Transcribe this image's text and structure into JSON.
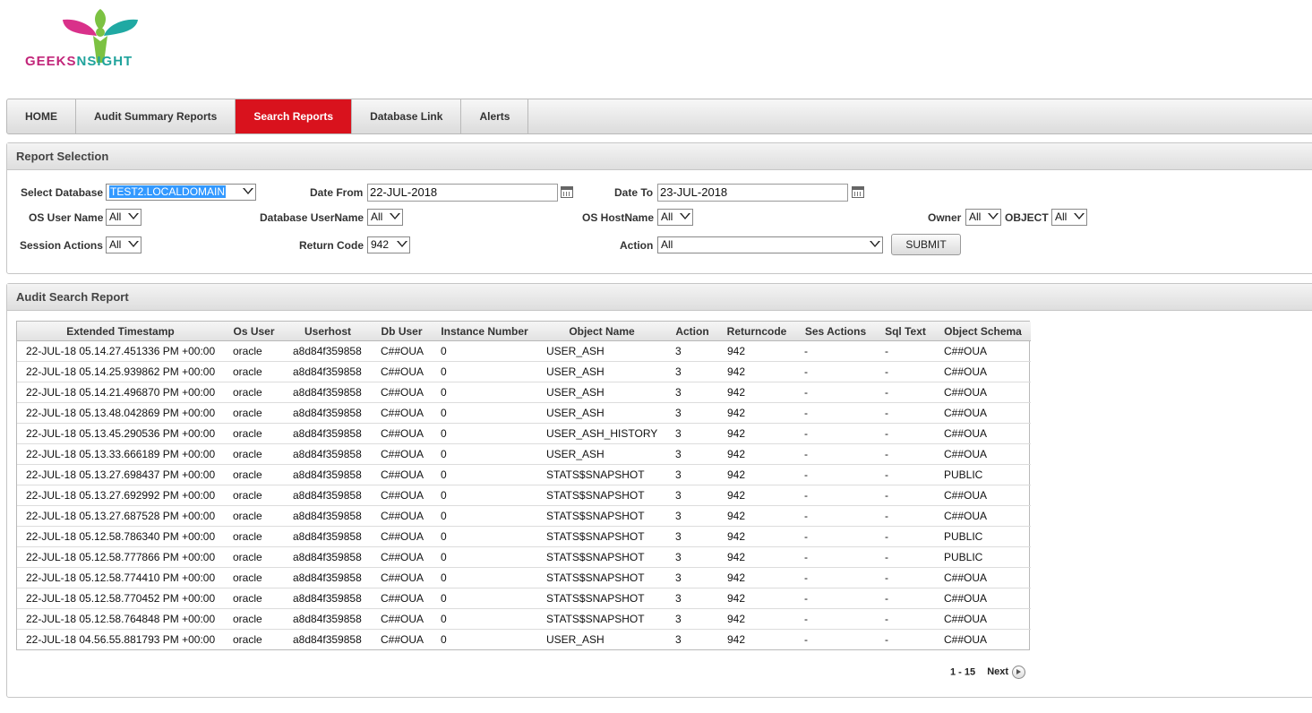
{
  "logo": {
    "text_a": "GEEKS",
    "text_b": "NSIGHT"
  },
  "nav": {
    "tabs": [
      {
        "label": "HOME",
        "active": false
      },
      {
        "label": "Audit Summary Reports",
        "active": false
      },
      {
        "label": "Search Reports",
        "active": true
      },
      {
        "label": "Database Link",
        "active": false
      },
      {
        "label": "Alerts",
        "active": false
      }
    ]
  },
  "report_selection": {
    "title": "Report Selection",
    "select_database": {
      "label": "Select Database",
      "value": "TEST2.LOCALDOMAIN"
    },
    "date_from": {
      "label": "Date From",
      "value": "22-JUL-2018"
    },
    "date_to": {
      "label": "Date To",
      "value": "23-JUL-2018"
    },
    "os_user": {
      "label": "OS User Name",
      "value": "All"
    },
    "db_username": {
      "label": "Database UserName",
      "value": "All"
    },
    "os_hostname": {
      "label": "OS HostName",
      "value": "All"
    },
    "owner": {
      "label": "Owner",
      "value": "All"
    },
    "object": {
      "label": "OBJECT",
      "value": "All"
    },
    "session_actions": {
      "label": "Session Actions",
      "value": "All"
    },
    "return_code": {
      "label": "Return Code",
      "value": "942"
    },
    "action": {
      "label": "Action",
      "value": "All"
    },
    "submit_label": "SUBMIT"
  },
  "audit_report": {
    "title": "Audit Search Report",
    "columns": [
      "Extended Timestamp",
      "Os User",
      "Userhost",
      "Db User",
      "Instance Number",
      "Object Name",
      "Action",
      "Returncode",
      "Ses Actions",
      "Sql Text",
      "Object Schema"
    ],
    "rows": [
      [
        "22-JUL-18 05.14.27.451336 PM +00:00",
        "oracle",
        "a8d84f359858",
        "C##OUA",
        "0",
        "USER_ASH",
        "3",
        "942",
        "-",
        "-",
        "C##OUA"
      ],
      [
        "22-JUL-18 05.14.25.939862 PM +00:00",
        "oracle",
        "a8d84f359858",
        "C##OUA",
        "0",
        "USER_ASH",
        "3",
        "942",
        "-",
        "-",
        "C##OUA"
      ],
      [
        "22-JUL-18 05.14.21.496870 PM +00:00",
        "oracle",
        "a8d84f359858",
        "C##OUA",
        "0",
        "USER_ASH",
        "3",
        "942",
        "-",
        "-",
        "C##OUA"
      ],
      [
        "22-JUL-18 05.13.48.042869 PM +00:00",
        "oracle",
        "a8d84f359858",
        "C##OUA",
        "0",
        "USER_ASH",
        "3",
        "942",
        "-",
        "-",
        "C##OUA"
      ],
      [
        "22-JUL-18 05.13.45.290536 PM +00:00",
        "oracle",
        "a8d84f359858",
        "C##OUA",
        "0",
        "USER_ASH_HISTORY",
        "3",
        "942",
        "-",
        "-",
        "C##OUA"
      ],
      [
        "22-JUL-18 05.13.33.666189 PM +00:00",
        "oracle",
        "a8d84f359858",
        "C##OUA",
        "0",
        "USER_ASH",
        "3",
        "942",
        "-",
        "-",
        "C##OUA"
      ],
      [
        "22-JUL-18 05.13.27.698437 PM +00:00",
        "oracle",
        "a8d84f359858",
        "C##OUA",
        "0",
        "STATS$SNAPSHOT",
        "3",
        "942",
        "-",
        "-",
        "PUBLIC"
      ],
      [
        "22-JUL-18 05.13.27.692992 PM +00:00",
        "oracle",
        "a8d84f359858",
        "C##OUA",
        "0",
        "STATS$SNAPSHOT",
        "3",
        "942",
        "-",
        "-",
        "C##OUA"
      ],
      [
        "22-JUL-18 05.13.27.687528 PM +00:00",
        "oracle",
        "a8d84f359858",
        "C##OUA",
        "0",
        "STATS$SNAPSHOT",
        "3",
        "942",
        "-",
        "-",
        "C##OUA"
      ],
      [
        "22-JUL-18 05.12.58.786340 PM +00:00",
        "oracle",
        "a8d84f359858",
        "C##OUA",
        "0",
        "STATS$SNAPSHOT",
        "3",
        "942",
        "-",
        "-",
        "PUBLIC"
      ],
      [
        "22-JUL-18 05.12.58.777866 PM +00:00",
        "oracle",
        "a8d84f359858",
        "C##OUA",
        "0",
        "STATS$SNAPSHOT",
        "3",
        "942",
        "-",
        "-",
        "PUBLIC"
      ],
      [
        "22-JUL-18 05.12.58.774410 PM +00:00",
        "oracle",
        "a8d84f359858",
        "C##OUA",
        "0",
        "STATS$SNAPSHOT",
        "3",
        "942",
        "-",
        "-",
        "C##OUA"
      ],
      [
        "22-JUL-18 05.12.58.770452 PM +00:00",
        "oracle",
        "a8d84f359858",
        "C##OUA",
        "0",
        "STATS$SNAPSHOT",
        "3",
        "942",
        "-",
        "-",
        "C##OUA"
      ],
      [
        "22-JUL-18 05.12.58.764848 PM +00:00",
        "oracle",
        "a8d84f359858",
        "C##OUA",
        "0",
        "STATS$SNAPSHOT",
        "3",
        "942",
        "-",
        "-",
        "C##OUA"
      ],
      [
        "22-JUL-18 04.56.55.881793 PM +00:00",
        "oracle",
        "a8d84f359858",
        "C##OUA",
        "0",
        "USER_ASH",
        "3",
        "942",
        "-",
        "-",
        "C##OUA"
      ]
    ],
    "pager": {
      "range": "1 - 15",
      "next_label": "Next"
    }
  },
  "colors": {
    "accent_red": "#d9121d",
    "logo_pink": "#c2267a",
    "logo_teal": "#1fa39c",
    "logo_green": "#7cc242"
  }
}
